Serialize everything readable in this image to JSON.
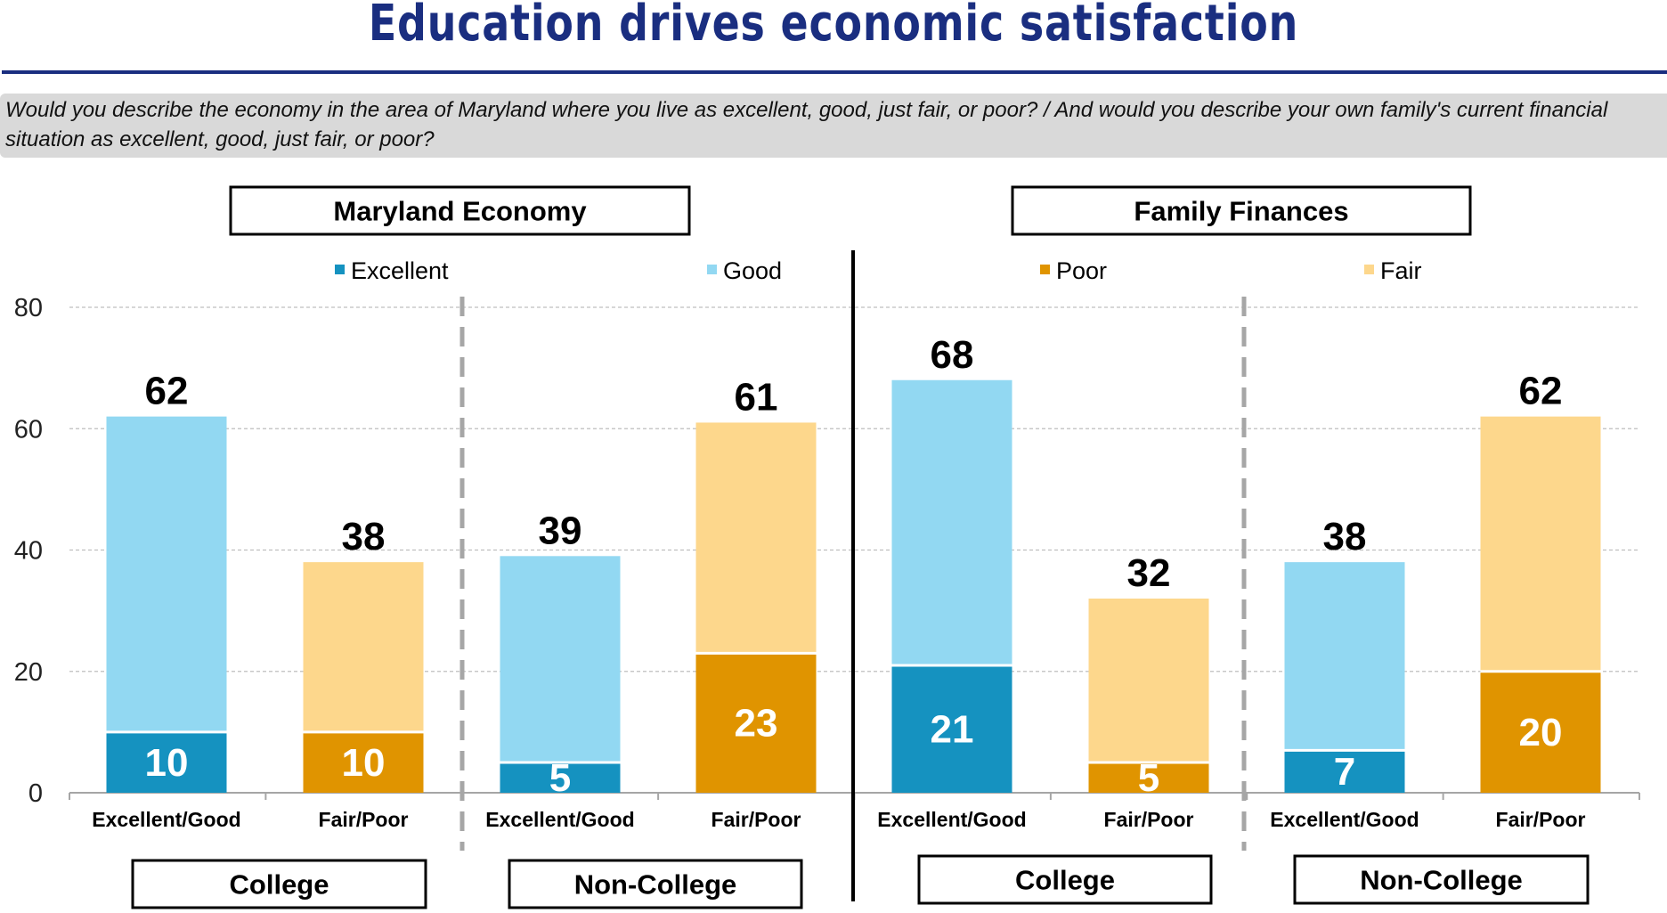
{
  "title": "Education drives economic satisfaction",
  "question": "Would you describe the economy in the area of Maryland where you live as excellent, good, just fair, or poor? / And would you describe your own family's current financial situation as excellent, good, just fair, or poor?",
  "chart_data": {
    "type": "bar",
    "stacked": true,
    "panels": [
      "Maryland Economy",
      "Family Finances"
    ],
    "groups": [
      "College",
      "Non-College",
      "College",
      "Non-College"
    ],
    "categories": [
      "Excellent/Good",
      "Fair/Poor",
      "Excellent/Good",
      "Fair/Poor",
      "Excellent/Good",
      "Fair/Poor",
      "Excellent/Good",
      "Fair/Poor"
    ],
    "totals": [
      62,
      38,
      39,
      61,
      68,
      32,
      38,
      62
    ],
    "bottom_values": [
      10,
      10,
      5,
      23,
      21,
      5,
      7,
      20
    ],
    "series": [
      {
        "name": "Excellent",
        "color": "#1592c0",
        "values": [
          10,
          null,
          5,
          null,
          21,
          null,
          7,
          null
        ]
      },
      {
        "name": "Good",
        "color": "#92d8f2",
        "values": [
          52,
          null,
          34,
          null,
          47,
          null,
          31,
          null
        ]
      },
      {
        "name": "Poor",
        "color": "#e09400",
        "values": [
          null,
          10,
          null,
          23,
          null,
          5,
          null,
          20
        ]
      },
      {
        "name": "Fair",
        "color": "#fdd78c",
        "values": [
          null,
          28,
          null,
          38,
          null,
          27,
          null,
          42
        ]
      }
    ],
    "legend": [
      "Excellent",
      "Good",
      "Poor",
      "Fair"
    ],
    "legend_placement": "top",
    "yticks": [
      0,
      20,
      40,
      60,
      80
    ],
    "ylim": [
      0,
      80
    ],
    "grid": true
  }
}
